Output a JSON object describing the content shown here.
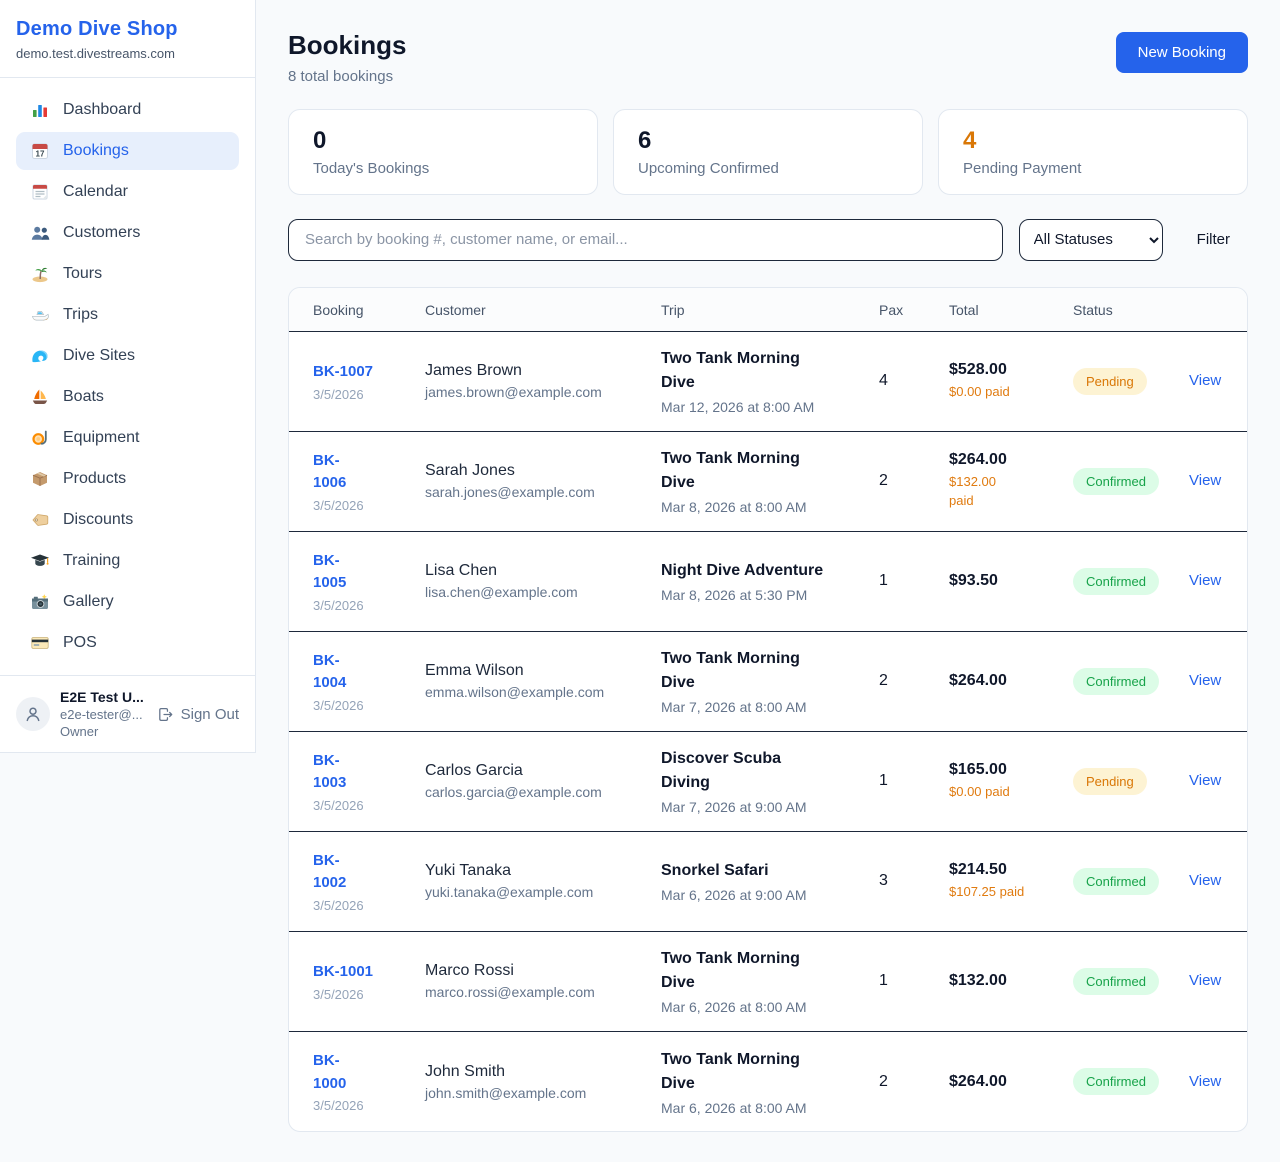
{
  "colors": {
    "accent_blue": "#2563eb",
    "pending_orange": "#d97706",
    "confirmed_green": "#17a34a",
    "background": "#f8fafc"
  },
  "sidebar": {
    "brand": "Demo Dive Shop",
    "domain": "demo.test.divestreams.com",
    "items": [
      {
        "label": "Dashboard",
        "icon": "dashboard",
        "active": false
      },
      {
        "label": "Bookings",
        "icon": "bookings",
        "active": true
      },
      {
        "label": "Calendar",
        "icon": "calendar",
        "active": false
      },
      {
        "label": "Customers",
        "icon": "customers",
        "active": false
      },
      {
        "label": "Tours",
        "icon": "tours",
        "active": false
      },
      {
        "label": "Trips",
        "icon": "trips",
        "active": false
      },
      {
        "label": "Dive Sites",
        "icon": "divesites",
        "active": false
      },
      {
        "label": "Boats",
        "icon": "boats",
        "active": false
      },
      {
        "label": "Equipment",
        "icon": "equipment",
        "active": false
      },
      {
        "label": "Products",
        "icon": "products",
        "active": false
      },
      {
        "label": "Discounts",
        "icon": "discounts",
        "active": false
      },
      {
        "label": "Training",
        "icon": "training",
        "active": false
      },
      {
        "label": "Gallery",
        "icon": "gallery",
        "active": false
      },
      {
        "label": "POS",
        "icon": "pos",
        "active": false
      }
    ],
    "user": {
      "name": "E2E Test U...",
      "email": "e2e-tester@...",
      "role": "Owner",
      "sign_out_label": "Sign Out"
    }
  },
  "header": {
    "title": "Bookings",
    "subtitle": "8 total bookings",
    "new_booking_label": "New Booking"
  },
  "stats": [
    {
      "value": "0",
      "label": "Today's Bookings",
      "accent": false
    },
    {
      "value": "6",
      "label": "Upcoming Confirmed",
      "accent": false
    },
    {
      "value": "4",
      "label": "Pending Payment",
      "accent": true
    }
  ],
  "controls": {
    "search_placeholder": "Search by booking #, customer name, or email...",
    "status_filter_value": "All Statuses",
    "filter_label": "Filter"
  },
  "table": {
    "columns": [
      "Booking",
      "Customer",
      "Trip",
      "Pax",
      "Total",
      "Status"
    ],
    "view_label": "View",
    "rows": [
      {
        "id": "BK-1007",
        "id_display": "BK-1007",
        "date": "3/5/2026",
        "customer": "James Brown",
        "email": "james.brown@example.com",
        "trip": "Two Tank Morning Dive",
        "trip_display": "Two Tank Morning\nDive",
        "trip_datetime": "Mar 12, 2026 at 8:00 AM",
        "pax": "4",
        "total": "$528.00",
        "paid": "$0.00 paid",
        "paid_display": "$0.00 paid",
        "status": "Pending"
      },
      {
        "id": "BK-1006",
        "id_display": "BK-\n1006",
        "date": "3/5/2026",
        "customer": "Sarah Jones",
        "email": "sarah.jones@example.com",
        "trip": "Two Tank Morning Dive",
        "trip_display": "Two Tank Morning\nDive",
        "trip_datetime": "Mar 8, 2026 at 8:00 AM",
        "pax": "2",
        "total": "$264.00",
        "paid": "$132.00 paid",
        "paid_display": "$132.00\npaid",
        "status": "Confirmed"
      },
      {
        "id": "BK-1005",
        "id_display": "BK-\n1005",
        "date": "3/5/2026",
        "customer": "Lisa Chen",
        "email": "lisa.chen@example.com",
        "trip": "Night Dive Adventure",
        "trip_display": "Night Dive Adventure",
        "trip_datetime": "Mar 8, 2026 at 5:30 PM",
        "pax": "1",
        "total": "$93.50",
        "paid": "",
        "paid_display": "",
        "status": "Confirmed"
      },
      {
        "id": "BK-1004",
        "id_display": "BK-\n1004",
        "date": "3/5/2026",
        "customer": "Emma Wilson",
        "email": "emma.wilson@example.com",
        "trip": "Two Tank Morning Dive",
        "trip_display": "Two Tank Morning\nDive",
        "trip_datetime": "Mar 7, 2026 at 8:00 AM",
        "pax": "2",
        "total": "$264.00",
        "paid": "",
        "paid_display": "",
        "status": "Confirmed"
      },
      {
        "id": "BK-1003",
        "id_display": "BK-\n1003",
        "date": "3/5/2026",
        "customer": "Carlos Garcia",
        "email": "carlos.garcia@example.com",
        "trip": "Discover Scuba Diving",
        "trip_display": "Discover Scuba\nDiving",
        "trip_datetime": "Mar 7, 2026 at 9:00 AM",
        "pax": "1",
        "total": "$165.00",
        "paid": "$0.00 paid",
        "paid_display": "$0.00 paid",
        "status": "Pending"
      },
      {
        "id": "BK-1002",
        "id_display": "BK-\n1002",
        "date": "3/5/2026",
        "customer": "Yuki Tanaka",
        "email": "yuki.tanaka@example.com",
        "trip": "Snorkel Safari",
        "trip_display": "Snorkel Safari",
        "trip_datetime": "Mar 6, 2026 at 9:00 AM",
        "pax": "3",
        "total": "$214.50",
        "paid": "$107.25 paid",
        "paid_display": "$107.25 paid",
        "status": "Confirmed"
      },
      {
        "id": "BK-1001",
        "id_display": "BK-1001",
        "date": "3/5/2026",
        "customer": "Marco Rossi",
        "email": "marco.rossi@example.com",
        "trip": "Two Tank Morning Dive",
        "trip_display": "Two Tank Morning\nDive",
        "trip_datetime": "Mar 6, 2026 at 8:00 AM",
        "pax": "1",
        "total": "$132.00",
        "paid": "",
        "paid_display": "",
        "status": "Confirmed"
      },
      {
        "id": "BK-1000",
        "id_display": "BK-\n1000",
        "date": "3/5/2026",
        "customer": "John Smith",
        "email": "john.smith@example.com",
        "trip": "Two Tank Morning Dive",
        "trip_display": "Two Tank Morning\nDive",
        "trip_datetime": "Mar 6, 2026 at 8:00 AM",
        "pax": "2",
        "total": "$264.00",
        "paid": "",
        "paid_display": "",
        "status": "Confirmed"
      }
    ]
  }
}
